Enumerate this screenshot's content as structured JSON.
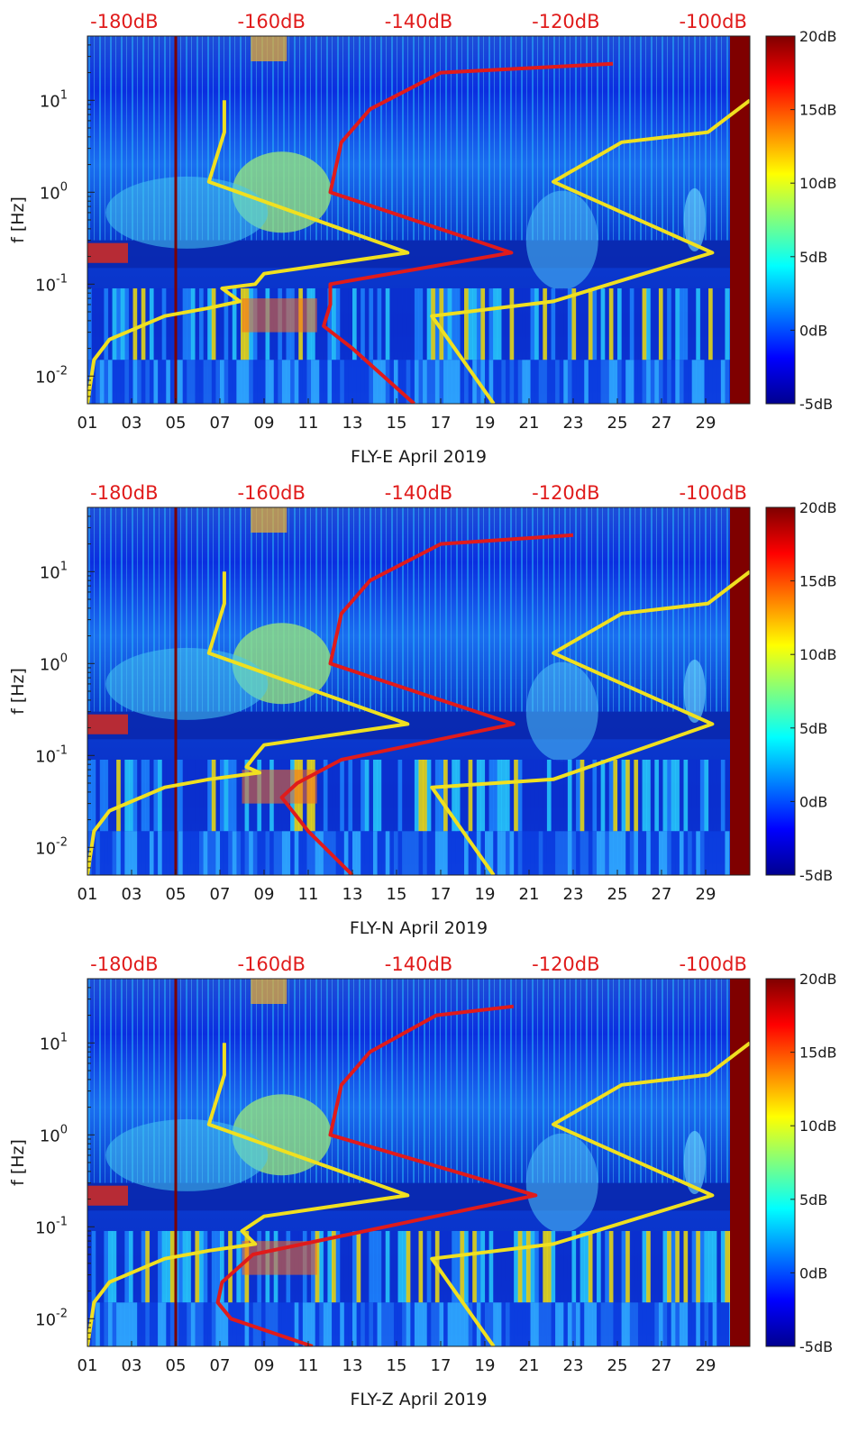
{
  "chart_data": [
    {
      "type": "heatmap",
      "title": "",
      "xlabel": "FLY-E April 2019",
      "ylabel": "f [Hz]",
      "x_ticks": [
        "01",
        "03",
        "05",
        "07",
        "09",
        "11",
        "13",
        "15",
        "17",
        "19",
        "21",
        "23",
        "25",
        "27",
        "29"
      ],
      "y_ticks": [
        {
          "label": "10",
          "exp": "-2",
          "value": 0.01
        },
        {
          "label": "10",
          "exp": "-1",
          "value": 0.1
        },
        {
          "label": "10",
          "exp": "0",
          "value": 1
        },
        {
          "label": "10",
          "exp": "1",
          "value": 10
        }
      ],
      "y_scale": "log",
      "ylim": [
        0.005,
        50
      ],
      "xlim": [
        1,
        31
      ],
      "top_ticks": [
        "-180dB",
        "-160dB",
        "-140dB",
        "-120dB",
        "-100dB"
      ],
      "top_axis_range": [
        -185,
        -95
      ],
      "colorbar": {
        "ticks": [
          "20dB",
          "15dB",
          "10dB",
          "5dB",
          "0dB",
          "-5dB"
        ],
        "range": [
          -5,
          20
        ],
        "colormap": "jet"
      },
      "series": [
        {
          "color": "#f0e020",
          "x": [
            1.0,
            1.3,
            2.0,
            4.5,
            6.5,
            7.9,
            7.1,
            8.6,
            9.0,
            15.5,
            6.5,
            7.2,
            7.2
          ],
          "y": [
            0.005,
            0.015,
            0.025,
            0.045,
            0.055,
            0.065,
            0.09,
            0.1,
            0.13,
            0.22,
            1.3,
            4.5,
            10
          ]
        },
        {
          "color": "#f0e020",
          "x": [
            19.4,
            16.6,
            22.1,
            29.3,
            22.1,
            25.2,
            29.1,
            31.0
          ],
          "y": [
            0.005,
            0.045,
            0.065,
            0.22,
            1.3,
            3.5,
            4.5,
            10
          ]
        },
        {
          "color": "#e01b1b",
          "x": [
            15.8,
            13.0,
            11.7,
            12.0,
            12.0,
            20.2,
            12.0,
            12.5,
            13.8,
            17.0,
            24.8
          ],
          "y": [
            0.005,
            0.02,
            0.035,
            0.06,
            0.1,
            0.22,
            1.0,
            3.5,
            8,
            20,
            25
          ]
        }
      ]
    },
    {
      "type": "heatmap",
      "title": "",
      "xlabel": "FLY-N April 2019",
      "ylabel": "f [Hz]",
      "x_ticks": [
        "01",
        "03",
        "05",
        "07",
        "09",
        "11",
        "13",
        "15",
        "17",
        "19",
        "21",
        "23",
        "25",
        "27",
        "29"
      ],
      "y_ticks": [
        {
          "label": "10",
          "exp": "-2",
          "value": 0.01
        },
        {
          "label": "10",
          "exp": "-1",
          "value": 0.1
        },
        {
          "label": "10",
          "exp": "0",
          "value": 1
        },
        {
          "label": "10",
          "exp": "1",
          "value": 10
        }
      ],
      "y_scale": "log",
      "ylim": [
        0.005,
        50
      ],
      "xlim": [
        1,
        31
      ],
      "top_ticks": [
        "-180dB",
        "-160dB",
        "-140dB",
        "-120dB",
        "-100dB"
      ],
      "top_axis_range": [
        -185,
        -95
      ],
      "colorbar": {
        "ticks": [
          "20dB",
          "15dB",
          "10dB",
          "5dB",
          "0dB",
          "-5dB"
        ],
        "range": [
          -5,
          20
        ],
        "colormap": "jet"
      },
      "series": [
        {
          "color": "#f0e020",
          "x": [
            1.0,
            1.3,
            2.0,
            4.5,
            6.5,
            8.8,
            8.2,
            8.6,
            9.0,
            15.5,
            6.5,
            7.2,
            7.2
          ],
          "y": [
            0.005,
            0.015,
            0.025,
            0.045,
            0.055,
            0.065,
            0.075,
            0.1,
            0.13,
            0.22,
            1.3,
            4.5,
            10
          ]
        },
        {
          "color": "#f0e020",
          "x": [
            19.4,
            16.6,
            22.1,
            29.3,
            22.1,
            25.2,
            29.1,
            31.0
          ],
          "y": [
            0.005,
            0.045,
            0.055,
            0.22,
            1.3,
            3.5,
            4.5,
            10
          ]
        },
        {
          "color": "#e01b1b",
          "x": [
            13.0,
            11.0,
            9.8,
            10.5,
            12.5,
            20.3,
            12.0,
            12.5,
            13.8,
            17.0,
            23.0
          ],
          "y": [
            0.005,
            0.015,
            0.035,
            0.05,
            0.09,
            0.22,
            1.0,
            3.5,
            8,
            20,
            25
          ]
        }
      ]
    },
    {
      "type": "heatmap",
      "title": "",
      "xlabel": "FLY-Z April 2019",
      "ylabel": "f [Hz]",
      "x_ticks": [
        "01",
        "03",
        "05",
        "07",
        "09",
        "11",
        "13",
        "15",
        "17",
        "19",
        "21",
        "23",
        "25",
        "27",
        "29"
      ],
      "y_ticks": [
        {
          "label": "10",
          "exp": "-2",
          "value": 0.01
        },
        {
          "label": "10",
          "exp": "-1",
          "value": 0.1
        },
        {
          "label": "10",
          "exp": "0",
          "value": 1
        },
        {
          "label": "10",
          "exp": "1",
          "value": 10
        }
      ],
      "y_scale": "log",
      "ylim": [
        0.005,
        50
      ],
      "xlim": [
        1,
        31
      ],
      "top_ticks": [
        "-180dB",
        "-160dB",
        "-140dB",
        "-120dB",
        "-100dB"
      ],
      "top_axis_range": [
        -185,
        -95
      ],
      "colorbar": {
        "ticks": [
          "20dB",
          "15dB",
          "10dB",
          "5dB",
          "0dB",
          "-5dB"
        ],
        "range": [
          -5,
          20
        ],
        "colormap": "jet"
      },
      "series": [
        {
          "color": "#f0e020",
          "x": [
            1.0,
            1.3,
            2.0,
            4.5,
            6.5,
            8.6,
            8.0,
            9.0,
            15.5,
            6.5,
            7.2,
            7.2
          ],
          "y": [
            0.005,
            0.015,
            0.025,
            0.045,
            0.055,
            0.065,
            0.09,
            0.13,
            0.22,
            1.3,
            4.5,
            10
          ]
        },
        {
          "color": "#f0e020",
          "x": [
            19.4,
            16.6,
            22.1,
            29.3,
            22.1,
            25.2,
            29.1,
            31.0
          ],
          "y": [
            0.005,
            0.045,
            0.065,
            0.22,
            1.3,
            3.5,
            4.5,
            10
          ]
        },
        {
          "color": "#e01b1b",
          "x": [
            11.2,
            7.5,
            6.9,
            7.1,
            8.5,
            21.3,
            12.0,
            12.5,
            13.8,
            16.8,
            20.3
          ],
          "y": [
            0.005,
            0.01,
            0.015,
            0.025,
            0.05,
            0.22,
            1.0,
            3.5,
            8,
            20,
            25
          ]
        }
      ]
    }
  ]
}
